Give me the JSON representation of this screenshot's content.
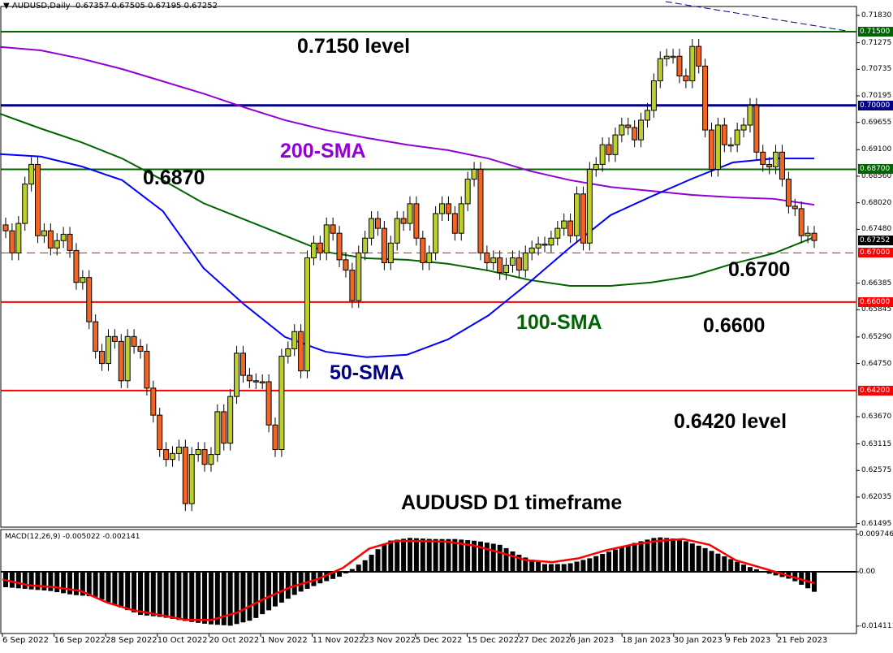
{
  "header": {
    "symbol_label": "AUDUSD,Daily",
    "open": "0.67357",
    "high": "0.67505",
    "low": "0.67195",
    "close": "0.67252"
  },
  "annotations": {
    "level_7150": "0.7150 level",
    "sma200": "200-SMA",
    "level_6870": "0.6870",
    "level_6700": "0.6700",
    "sma100": "100-SMA",
    "level_6600": "0.6600",
    "sma50": "50-SMA",
    "level_6420": "0.6420 level",
    "timeframe": "AUDUSD D1 timeframe"
  },
  "colors": {
    "bull": "#bccf2e",
    "bear": "#f26522",
    "sma50": "#0000ff",
    "sma100": "#006400",
    "sma200": "#9400d3",
    "support": "#ff0000",
    "resistance_green": "#006400",
    "navy": "#000080"
  },
  "chart_data": [
    {
      "type": "candlestick",
      "title": "",
      "ylim": [
        0.61495,
        0.7183
      ],
      "y_ticks": [
        "0.71830",
        "0.71275",
        "0.70735",
        "0.70195",
        "0.69655",
        "0.69100",
        "0.68560",
        "0.68020",
        "0.67480",
        "0.66385",
        "0.65845",
        "0.65290",
        "0.64750",
        "0.63670",
        "0.63115",
        "0.62575",
        "0.62035",
        "0.61495"
      ],
      "x_ticks": [
        "6 Sep 2022",
        "16 Sep 2022",
        "28 Sep 2022",
        "10 Oct 2022",
        "20 Oct 2022",
        "1 Nov 2022",
        "11 Nov 2022",
        "23 Nov 2022",
        "5 Dec 2022",
        "15 Dec 2022",
        "27 Dec 2022",
        "6 Jan 2023",
        "18 Jan 2023",
        "30 Jan 2023",
        "9 Feb 2023",
        "21 Feb 2023"
      ],
      "close": [
        0.6745,
        0.67,
        0.676,
        0.684,
        0.688,
        0.6735,
        0.6745,
        0.671,
        0.6725,
        0.6738,
        0.6705,
        0.664,
        0.665,
        0.656,
        0.65,
        0.6475,
        0.653,
        0.652,
        0.644,
        0.653,
        0.651,
        0.65,
        0.6425,
        0.637,
        0.63,
        0.628,
        0.6292,
        0.6305,
        0.619,
        0.629,
        0.63,
        0.627,
        0.629,
        0.6377,
        0.6313,
        0.6408,
        0.6496,
        0.6451,
        0.644,
        0.6438,
        0.6438,
        0.635,
        0.63,
        0.649,
        0.6505,
        0.654,
        0.646,
        0.669,
        0.672,
        0.67,
        0.6757,
        0.674,
        0.6686,
        0.6665,
        0.6603,
        0.67,
        0.673,
        0.677,
        0.675,
        0.668,
        0.672,
        0.677,
        0.676,
        0.68,
        0.673,
        0.668,
        0.67,
        0.678,
        0.68,
        0.678,
        0.674,
        0.68,
        0.685,
        0.687,
        0.67,
        0.668,
        0.669,
        0.666,
        0.6675,
        0.669,
        0.6665,
        0.67,
        0.671,
        0.6718,
        0.6716,
        0.673,
        0.675,
        0.6765,
        0.6735,
        0.682,
        0.672,
        0.687,
        0.688,
        0.692,
        0.69,
        0.694,
        0.696,
        0.6955,
        0.693,
        0.697,
        0.699,
        0.705,
        0.7095,
        0.71,
        0.71,
        0.706,
        0.705,
        0.712,
        0.708,
        0.695,
        0.687,
        0.696,
        0.692,
        0.692,
        0.695,
        0.696,
        0.7,
        0.6905,
        0.688,
        0.6875,
        0.6905,
        0.685,
        0.6795,
        0.679,
        0.6735,
        0.674,
        0.67252
      ],
      "sma50": [
        0.6901,
        0.6896,
        0.6876,
        0.6848,
        0.6785,
        0.6669,
        0.6595,
        0.6529,
        0.6499,
        0.6488,
        0.6493,
        0.6524,
        0.6573,
        0.664,
        0.6711,
        0.6777,
        0.6815,
        0.6851,
        0.6884,
        0.6892,
        0.6892
      ],
      "sma100": [
        0.6983,
        0.6953,
        0.6925,
        0.6892,
        0.6848,
        0.6801,
        0.6768,
        0.6735,
        0.6702,
        0.6689,
        0.6686,
        0.6678,
        0.6664,
        0.6645,
        0.6633,
        0.6633,
        0.664,
        0.6653,
        0.6678,
        0.6699,
        0.6732
      ],
      "sma200": [
        0.7119,
        0.7112,
        0.7095,
        0.7074,
        0.7049,
        0.7024,
        0.6996,
        0.697,
        0.695,
        0.6934,
        0.692,
        0.6909,
        0.6892,
        0.6867,
        0.6848,
        0.6834,
        0.6826,
        0.6818,
        0.6813,
        0.681,
        0.6798
      ],
      "levels": [
        {
          "value": 0.715,
          "label": "0.71500",
          "color": "#006400",
          "style": "solid"
        },
        {
          "value": 0.7,
          "label": "0.70000",
          "color": "#000080",
          "style": "solid-thick"
        },
        {
          "value": 0.687,
          "label": "0.68700",
          "color": "#006400",
          "style": "solid"
        },
        {
          "value": 0.67,
          "label": "0.67000",
          "color": "#ff0000",
          "style": "dashed"
        },
        {
          "value": 0.66,
          "label": "0.66000",
          "color": "#ff0000",
          "style": "solid"
        },
        {
          "value": 0.642,
          "label": "0.64200",
          "color": "#ff0000",
          "style": "solid"
        }
      ],
      "current_price": {
        "value": 0.67252,
        "label": "0.67252",
        "color": "#000000"
      }
    },
    {
      "type": "bar",
      "title": "MACD(12,26,9) -0.005022 -0.002141",
      "ylim": [
        -0.014111,
        0.009746
      ],
      "y_ticks": [
        "0.009746",
        "0.00",
        "-0.014111"
      ],
      "histogram": [
        -0.004,
        -0.0045,
        -0.005,
        -0.006,
        -0.0065,
        -0.009,
        -0.0112,
        -0.0118,
        -0.0128,
        -0.0136,
        -0.014,
        -0.0125,
        -0.009,
        -0.0055,
        -0.003,
        -0.001,
        0.003,
        0.008,
        0.0088,
        0.0085,
        0.0085,
        0.008,
        0.007,
        0.004,
        0.002,
        0.002,
        0.0035,
        0.0055,
        0.0075,
        0.009,
        0.0085,
        0.0065,
        0.004,
        0.0015,
        -0.0005,
        -0.002,
        -0.0052
      ],
      "signal": [
        -0.002,
        -0.0035,
        -0.004,
        -0.005,
        -0.008,
        -0.01,
        -0.0112,
        -0.0125,
        -0.0125,
        -0.0105,
        -0.007,
        -0.004,
        -0.002,
        0.001,
        0.006,
        0.008,
        0.008,
        0.0078,
        0.0068,
        0.005,
        0.003,
        0.0025,
        0.0035,
        0.0055,
        0.007,
        0.008,
        0.0085,
        0.007,
        0.003,
        0.001,
        -0.001,
        -0.003
      ]
    }
  ]
}
